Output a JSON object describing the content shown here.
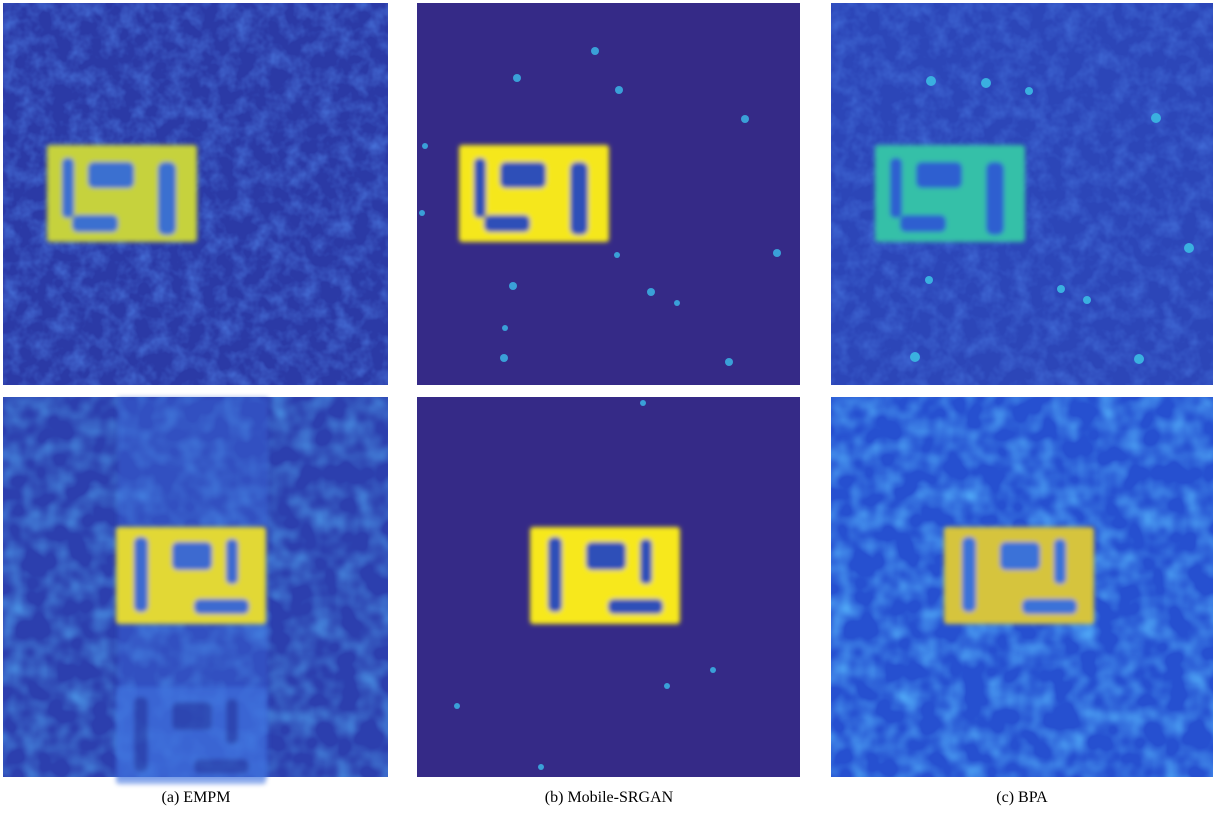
{
  "figure": {
    "captions": [
      "(a) EMPM",
      "(b) Mobile-SRGAN",
      "(c) BPA"
    ]
  }
}
